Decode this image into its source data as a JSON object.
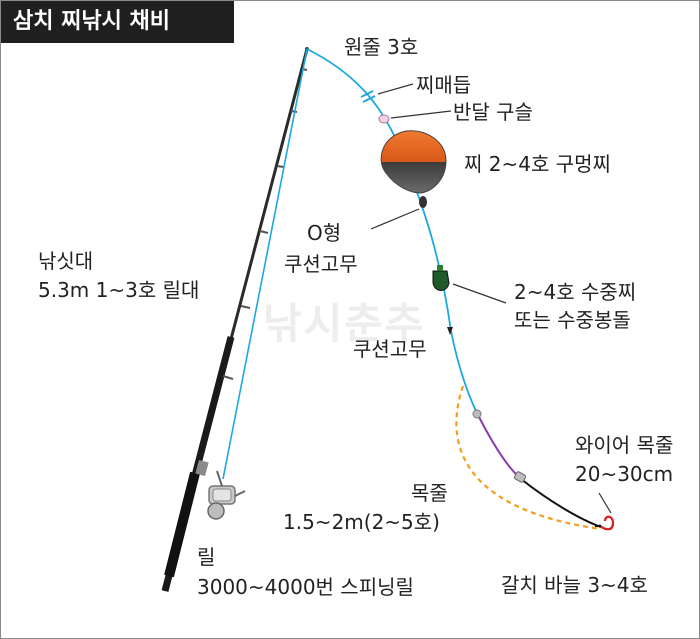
{
  "title": "삼치 찌낚시 채비",
  "watermark": "낚시춘추",
  "labels": {
    "main_line": "원줄 3호",
    "float_stopper": "찌매듭",
    "half_bead": "반달 구슬",
    "float": "찌 2~4호 구멍찌",
    "o_ring_cushion_line1": "O형",
    "o_ring_cushion_line2": "쿠션고무",
    "rod_line1": "낚싯대",
    "rod_line2": "5.3m 1~3호 릴대",
    "underwater_float_line1": "2~4호 수중찌",
    "underwater_float_line2": "또는 수중봉돌",
    "cushion_rubber": "쿠션고무",
    "wire_leader_line1": "와이어 목줄",
    "wire_leader_line2": "20~30cm",
    "leader_line1": "목줄",
    "leader_line2": "1.5~2m(2~5호)",
    "reel_line1": "릴",
    "reel_line2": "3000~4000번 스피닝릴",
    "hook": "갈치 바늘 3~4호"
  },
  "colors": {
    "line": "#1ea7e0",
    "leader": "#8a3db0",
    "wire": "#111111",
    "float_top": "#e8641e",
    "float_bottom": "#333333",
    "alt_leader_dashed": "#f0a020",
    "hook": "#d42020"
  }
}
